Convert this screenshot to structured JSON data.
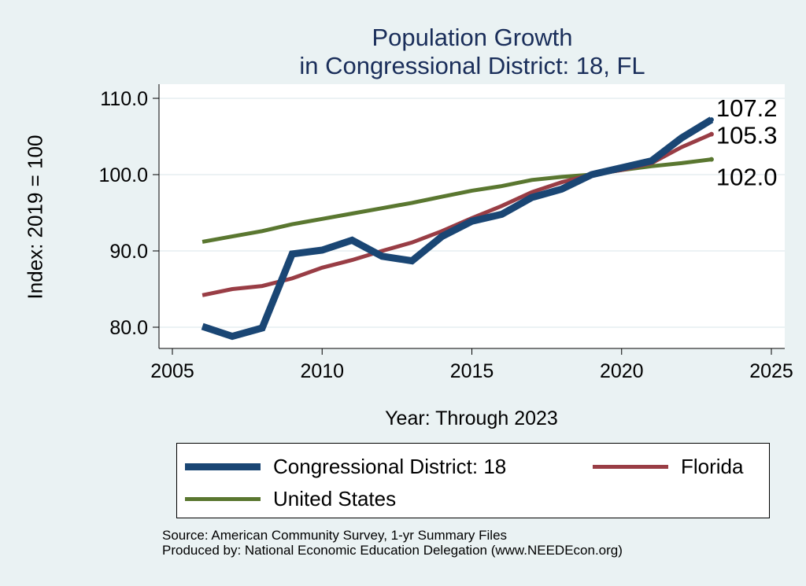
{
  "chart_data": {
    "type": "line",
    "title": "Population Growth",
    "subtitle": "in Congressional District: 18, FL",
    "xlabel": "Year: Through 2023",
    "ylabel": "Index: 2019 = 100",
    "xlim": [
      2005,
      2025
    ],
    "ylim": [
      77,
      110.5
    ],
    "xticks": [
      2005,
      2010,
      2015,
      2020,
      2025
    ],
    "yticks": [
      80.0,
      90.0,
      100.0,
      110.0
    ],
    "ytick_labels": [
      "80.0",
      "90.0",
      "100.0",
      "110.0"
    ],
    "grid": true,
    "legend_position": "bottom",
    "series": [
      {
        "name": "Congressional District: 18",
        "color": "#1a4674",
        "end_label": "107.2",
        "x": [
          2006,
          2007,
          2008,
          2009,
          2010,
          2011,
          2012,
          2013,
          2014,
          2015,
          2016,
          2017,
          2018,
          2019,
          2020,
          2021,
          2022,
          2023
        ],
        "values": [
          80.1,
          78.8,
          79.9,
          89.6,
          90.1,
          91.4,
          89.3,
          88.7,
          91.9,
          93.9,
          94.8,
          97.0,
          98.1,
          100.0,
          100.9,
          101.8,
          104.8,
          107.2
        ]
      },
      {
        "name": "Florida",
        "color": "#993d45",
        "end_label": "105.3",
        "x": [
          2006,
          2007,
          2008,
          2009,
          2010,
          2011,
          2012,
          2013,
          2014,
          2015,
          2016,
          2017,
          2018,
          2019,
          2020,
          2021,
          2022,
          2023
        ],
        "values": [
          84.2,
          85.0,
          85.4,
          86.4,
          87.8,
          88.8,
          90.0,
          91.1,
          92.6,
          94.3,
          95.9,
          97.7,
          99.0,
          100.0,
          100.6,
          101.5,
          103.6,
          105.3
        ]
      },
      {
        "name": "United States",
        "color": "#5a7730",
        "end_label": "102.0",
        "x": [
          2006,
          2007,
          2008,
          2009,
          2010,
          2011,
          2012,
          2013,
          2014,
          2015,
          2016,
          2017,
          2018,
          2019,
          2020,
          2021,
          2022,
          2023
        ],
        "values": [
          91.2,
          91.9,
          92.6,
          93.5,
          94.2,
          94.9,
          95.6,
          96.3,
          97.1,
          97.9,
          98.5,
          99.3,
          99.7,
          100.0,
          100.6,
          101.1,
          101.5,
          102.0
        ]
      }
    ],
    "source_lines": [
      "Source: American Community Survey, 1-yr Summary Files",
      "Produced by: National Economic Education Delegation (www.NEEDEcon.org)"
    ]
  }
}
